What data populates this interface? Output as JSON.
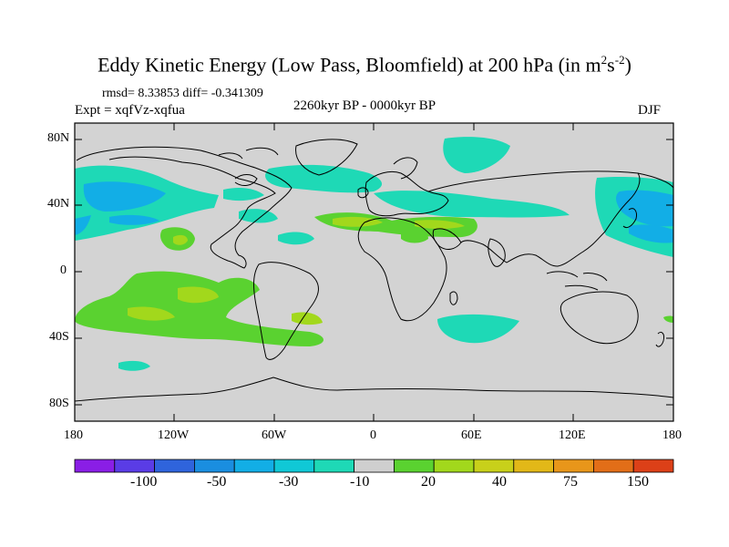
{
  "title": {
    "main": "Eddy Kinetic Energy (Low Pass, Bloomfield) at 200 hPa (in m",
    "sup1": "2",
    "mid": "s",
    "sup2": "-2",
    "end": ")"
  },
  "stats": "rmsd= 8.33853 diff= -0.341309",
  "experiment": "Expt = xqfVz-xqfua",
  "period": "2260kyr BP - 0000kyr BP",
  "season": "DJF",
  "axes": {
    "y_ticks": [
      "80N",
      "40N",
      "0",
      "40S",
      "80S"
    ],
    "x_ticks": [
      "180",
      "120W",
      "60W",
      "0",
      "60E",
      "120E",
      "180"
    ]
  },
  "colorbar": {
    "colors": [
      "#8a1ee6",
      "#5a3ce6",
      "#2f64dc",
      "#1a8ee0",
      "#12aee6",
      "#10c8d6",
      "#1ed9b6",
      "#cfcfcf",
      "#5ad230",
      "#a2d81c",
      "#c8d01a",
      "#e2b818",
      "#e8961a",
      "#e26e18",
      "#dc4018"
    ],
    "labels": [
      "-100",
      "-50",
      "-30",
      "-10",
      "20",
      "40",
      "75",
      "150"
    ]
  },
  "colors": {
    "land_ocean_bg": "#d3d3d3",
    "coastline": "#000000"
  }
}
